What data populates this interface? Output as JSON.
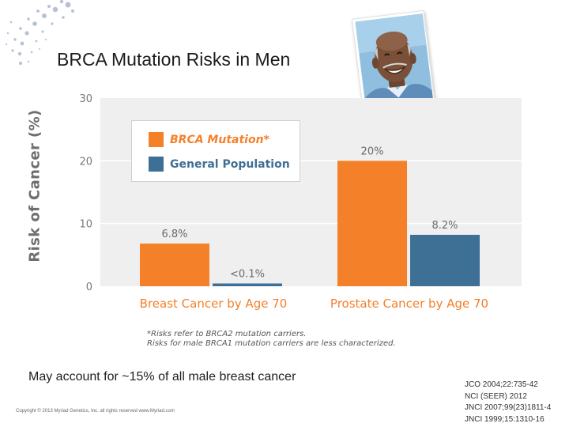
{
  "slide": {
    "title": "BRCA Mutation Risks in Men",
    "bottom_note": "May account for ~15% of all male breast cancer",
    "copyright": "Copyright © 2013 Myriad Genetics, Inc.  all rights reserved  www.Myriad.com",
    "references": [
      "JCO 2004;22:735-42",
      "NCI (SEER) 2012",
      "JNCI 2007;99(23)1811-4",
      "JNCI 1999;15:1310-16"
    ]
  },
  "chart_data": {
    "type": "bar",
    "ylabel": "Risk of Cancer (%)",
    "xlabel": "",
    "ylim": [
      0,
      30
    ],
    "yticks": [
      0,
      10,
      20,
      30
    ],
    "grid": true,
    "legend_position": "top-left",
    "categories": [
      "Breast Cancer by Age 70",
      "Prostate Cancer by Age 70"
    ],
    "series": [
      {
        "name": "BRCA Mutation*",
        "color": "#f4802a",
        "values": [
          6.8,
          20
        ],
        "labels": [
          "6.8%",
          "20%"
        ]
      },
      {
        "name": "General Population",
        "color": "#3e6f94",
        "values": [
          0.1,
          8.2
        ],
        "labels": [
          "<0.1%",
          "8.2%"
        ]
      }
    ],
    "footnote": [
      "*Risks refer to BRCA2 mutation carriers.",
      "Risks for male BRCA1 mutation carriers are less characterized."
    ]
  },
  "colors": {
    "plot_bg": "#efefef",
    "axis_text": "#7a7a7a",
    "category_text": "#f4802a",
    "dot_color": "#b8c0d8"
  },
  "icons": {
    "photo": "smiling-man-photo"
  }
}
